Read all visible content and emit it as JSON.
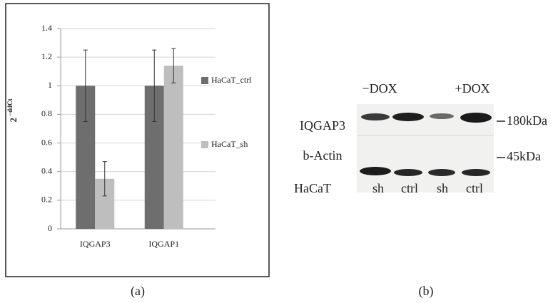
{
  "chart_data": {
    "type": "bar",
    "ylabel": {
      "base": "2",
      "exponent": "−ddCt"
    },
    "categories": [
      "IQGAP3",
      "IQGAP1"
    ],
    "series": [
      {
        "name": "HaCaT_ctrl",
        "color": "#6e6e6e",
        "values": [
          1,
          1
        ],
        "errors": [
          0.25,
          0.25
        ]
      },
      {
        "name": "HaCaT_sh",
        "color": "#bebebe",
        "values": [
          0.35,
          1.14
        ],
        "errors": [
          0.12,
          0.12
        ]
      }
    ],
    "ylim": [
      0,
      1.4
    ],
    "yticks": [
      0,
      0.2,
      0.4,
      0.6,
      0.8,
      1,
      1.2,
      1.4
    ],
    "grid": true,
    "legend": "right"
  },
  "blot": {
    "conditions": [
      "−DOX",
      "+DOX"
    ],
    "rows": [
      {
        "label": "IQGAP3",
        "marker": "180kDa"
      },
      {
        "label": "b-Actin",
        "marker": "45kDa"
      }
    ],
    "cell_line": "HaCaT",
    "lanes": [
      "sh",
      "ctrl",
      "sh",
      "ctrl"
    ]
  },
  "captions": [
    "(a)",
    "(b)"
  ]
}
